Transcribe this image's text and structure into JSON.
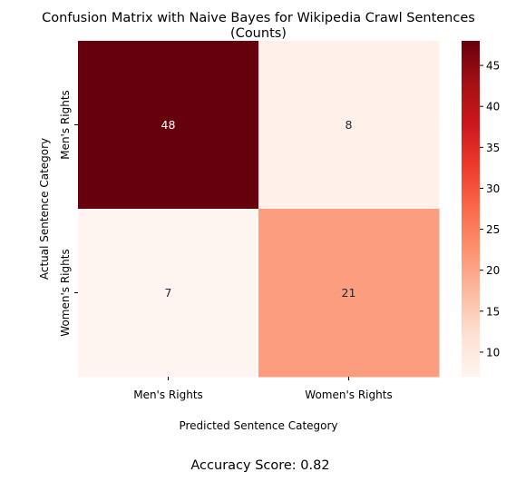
{
  "chart_data": {
    "type": "heatmap",
    "title": "Confusion Matrix with Naive Bayes for Wikipedia Crawl Sentences",
    "subtitle": "(Counts)",
    "xlabel": "Predicted Sentence Category",
    "ylabel": "Actual Sentence Category",
    "x_categories": [
      "Men's Rights",
      "Women's Rights"
    ],
    "y_categories": [
      "Men's Rights",
      "Women's Rights"
    ],
    "values": [
      [
        48,
        8
      ],
      [
        7,
        21
      ]
    ],
    "value_labels": [
      [
        "48",
        "8"
      ],
      [
        "7",
        "21"
      ]
    ],
    "colormap": "Reds",
    "color_range": [
      7,
      48
    ],
    "colorbar_ticks": [
      10,
      15,
      20,
      25,
      30,
      35,
      40,
      45
    ],
    "colorbar_tick_labels": [
      "10",
      "15",
      "20",
      "25",
      "30",
      "35",
      "40",
      "45"
    ],
    "footer": "Accuracy Score: 0.82"
  }
}
